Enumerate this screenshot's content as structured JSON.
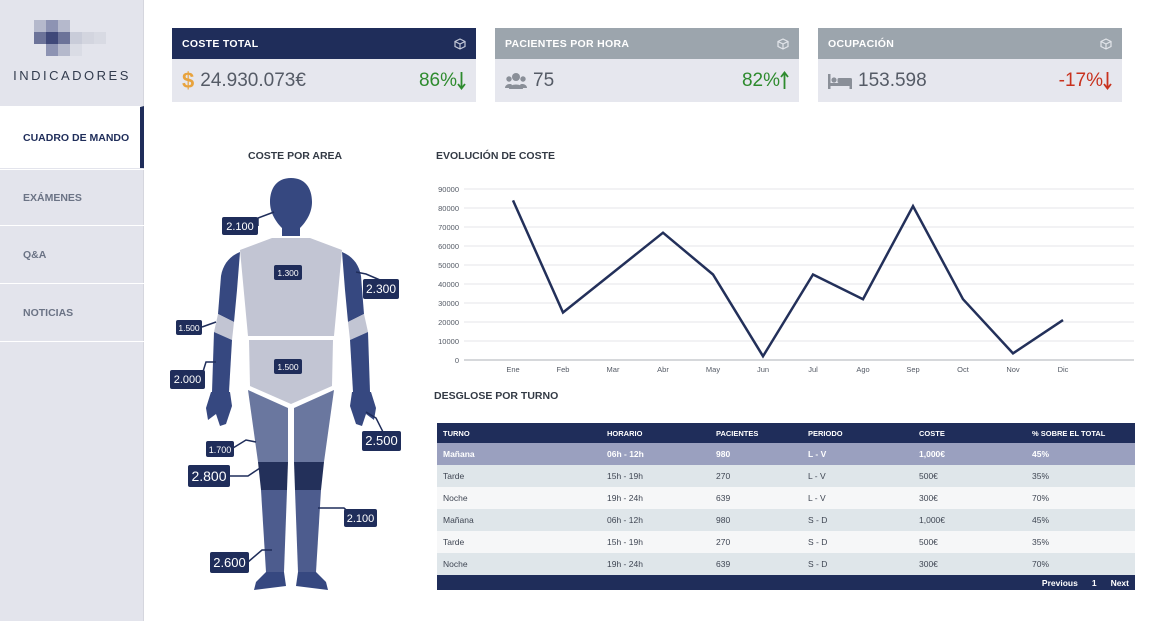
{
  "app": {
    "logo_text": "INDICADORES"
  },
  "sidebar": {
    "items": [
      {
        "label": "CUADRO DE MANDO",
        "active": true
      },
      {
        "label": "EXÁMENES"
      },
      {
        "label": "Q&A"
      },
      {
        "label": "NOTICIAS"
      }
    ]
  },
  "kpis": [
    {
      "title": "COSTE TOTAL",
      "value": "24.930.073€",
      "change": "86%",
      "direction": "down",
      "icon": "dollar-icon",
      "header_color": "#1f2d5a",
      "change_color": "#2e8b2e"
    },
    {
      "title": "PACIENTES POR HORA",
      "value": "75",
      "change": "82%",
      "direction": "up",
      "icon": "users-icon",
      "header_color": "#9ca5ad",
      "change_color": "#2e8b2e"
    },
    {
      "title": "OCUPACIÓN",
      "value": "153.598",
      "change": "-17%",
      "direction": "down",
      "icon": "bed-icon",
      "header_color": "#9ca5ad",
      "change_color": "#c8321e"
    }
  ],
  "body_map": {
    "title": "COSTE POR AREA",
    "labels": {
      "head": "2.100",
      "torso": "1.300",
      "right_upper_arm": "2.300",
      "left_elbow": "1.500",
      "abdomen": "1.500",
      "left_forearm": "2.000",
      "right_hand": "2.500",
      "left_thigh": "1.700",
      "left_knee": "2.800",
      "right_shin": "2.100",
      "left_foot": "2.600"
    }
  },
  "cost_chart": {
    "title": "EVOLUCIÓN DE COSTE",
    "chart_data": {
      "type": "line",
      "categories": [
        "Ene",
        "Feb",
        "Mar",
        "Abr",
        "May",
        "Jun",
        "Jul",
        "Ago",
        "Sep",
        "Oct",
        "Nov",
        "Dic"
      ],
      "values": [
        84000,
        25000,
        46000,
        67000,
        45000,
        2000,
        45000,
        32000,
        81000,
        32000,
        3500,
        21000
      ],
      "ylim": [
        0,
        90000
      ],
      "yticks": [
        "0",
        "10000",
        "20000",
        "30000",
        "40000",
        "50000",
        "60000",
        "70000",
        "80000",
        "90000"
      ],
      "grid": true,
      "line_color": "#23305a"
    }
  },
  "shift_table": {
    "title": "DESGLOSE POR TURNO",
    "headers": [
      "TURNO",
      "HORARIO",
      "PACIENTES",
      "PERIODO",
      "COSTE",
      "% SOBRE EL TOTAL"
    ],
    "rows": [
      [
        "Mañana",
        "06h - 12h",
        "980",
        "L - V",
        "1,000€",
        "45%"
      ],
      [
        "Tarde",
        "15h - 19h",
        "270",
        "L - V",
        "500€",
        "35%"
      ],
      [
        "Noche",
        "19h - 24h",
        "639",
        "L - V",
        "300€",
        "70%"
      ],
      [
        "Mañana",
        "06h - 12h",
        "980",
        "S - D",
        "1,000€",
        "45%"
      ],
      [
        "Tarde",
        "15h - 19h",
        "270",
        "S - D",
        "500€",
        "35%"
      ],
      [
        "Noche",
        "19h - 24h",
        "639",
        "S - D",
        "300€",
        "70%"
      ]
    ],
    "pager": {
      "previous": "Previous",
      "page": "1",
      "next": "Next"
    }
  }
}
